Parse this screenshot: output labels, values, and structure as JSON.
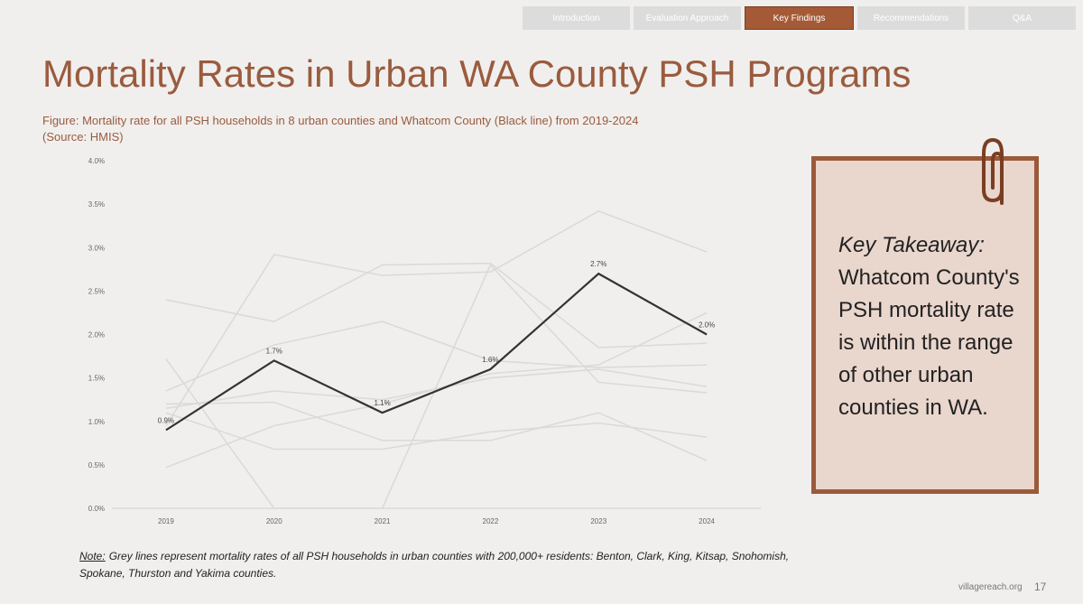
{
  "nav": {
    "tabs": [
      {
        "label": "Introduction",
        "active": false
      },
      {
        "label": "Evaluation Approach",
        "active": false
      },
      {
        "label": "Key Findings",
        "active": true
      },
      {
        "label": "Recommendations",
        "active": false
      },
      {
        "label": "Q&A",
        "active": false
      }
    ]
  },
  "title": "Mortality Rates in Urban WA County PSH Programs",
  "chart_data": {
    "type": "line",
    "title": "Figure: Mortality rate for all PSH households in 8 urban counties and Whatcom County (Black line) from 2019-2024",
    "subtitle": "(Source: HMIS)",
    "categories": [
      "2019",
      "2020",
      "2021",
      "2022",
      "2023",
      "2024"
    ],
    "ylim": [
      0,
      4.0
    ],
    "yticks": [
      {
        "value": 0,
        "label": "0.0%"
      },
      {
        "value": 0.5,
        "label": "0.5%"
      },
      {
        "value": 1.0,
        "label": "1.0%"
      },
      {
        "value": 1.5,
        "label": "1.5%"
      },
      {
        "value": 2.0,
        "label": "2.0%"
      },
      {
        "value": 2.5,
        "label": "2.5%"
      },
      {
        "value": 3.0,
        "label": "3.0%"
      },
      {
        "value": 3.5,
        "label": "3.5%"
      },
      {
        "value": 4.0,
        "label": "4.0%"
      }
    ],
    "series": [
      {
        "color": "#d9d9d9",
        "values": [
          2.4,
          2.15,
          2.8,
          2.82,
          1.85,
          1.9
        ]
      },
      {
        "color": "#d9d9d9",
        "values": [
          0.47,
          0.95,
          1.2,
          1.55,
          1.65,
          2.25
        ]
      },
      {
        "color": "#d9d9d9",
        "values": [
          1.35,
          1.88,
          2.15,
          1.7,
          1.62,
          1.65
        ]
      },
      {
        "color": "#d9d9d9",
        "values": [
          1.72,
          0.0,
          0.0,
          2.8,
          1.45,
          1.33
        ]
      },
      {
        "color": "#d9d9d9",
        "values": [
          0.95,
          2.92,
          2.68,
          2.72,
          3.42,
          2.95
        ]
      },
      {
        "color": "#d9d9d9",
        "values": [
          1.15,
          1.35,
          1.25,
          1.5,
          1.6,
          1.4
        ]
      },
      {
        "color": "#d9d9d9",
        "values": [
          1.1,
          0.68,
          0.68,
          0.88,
          0.98,
          0.82
        ]
      },
      {
        "color": "#d9d9d9",
        "values": [
          1.2,
          1.22,
          0.78,
          0.78,
          1.1,
          0.55
        ]
      },
      {
        "color": "#333333",
        "values": [
          0.9,
          1.7,
          1.1,
          1.6,
          2.7,
          2.0
        ],
        "value_labels": [
          "0.9%",
          "1.7%",
          "1.1%",
          "1.6%",
          "2.7%",
          "2.0%"
        ]
      }
    ]
  },
  "takeaway": {
    "heading": "Key Takeaway:",
    "text": "Whatcom County's PSH mortality rate is within the range of other urban counties in WA."
  },
  "note": {
    "label": "Note:",
    "text": "Grey lines represent mortality rates of all PSH households in urban counties with 200,000+ residents: Benton, Clark, King, Kitsap, Snohomish, Spokane, Thurston and Yakima counties."
  },
  "footer": {
    "site": "villagereach.org",
    "page": 17
  }
}
